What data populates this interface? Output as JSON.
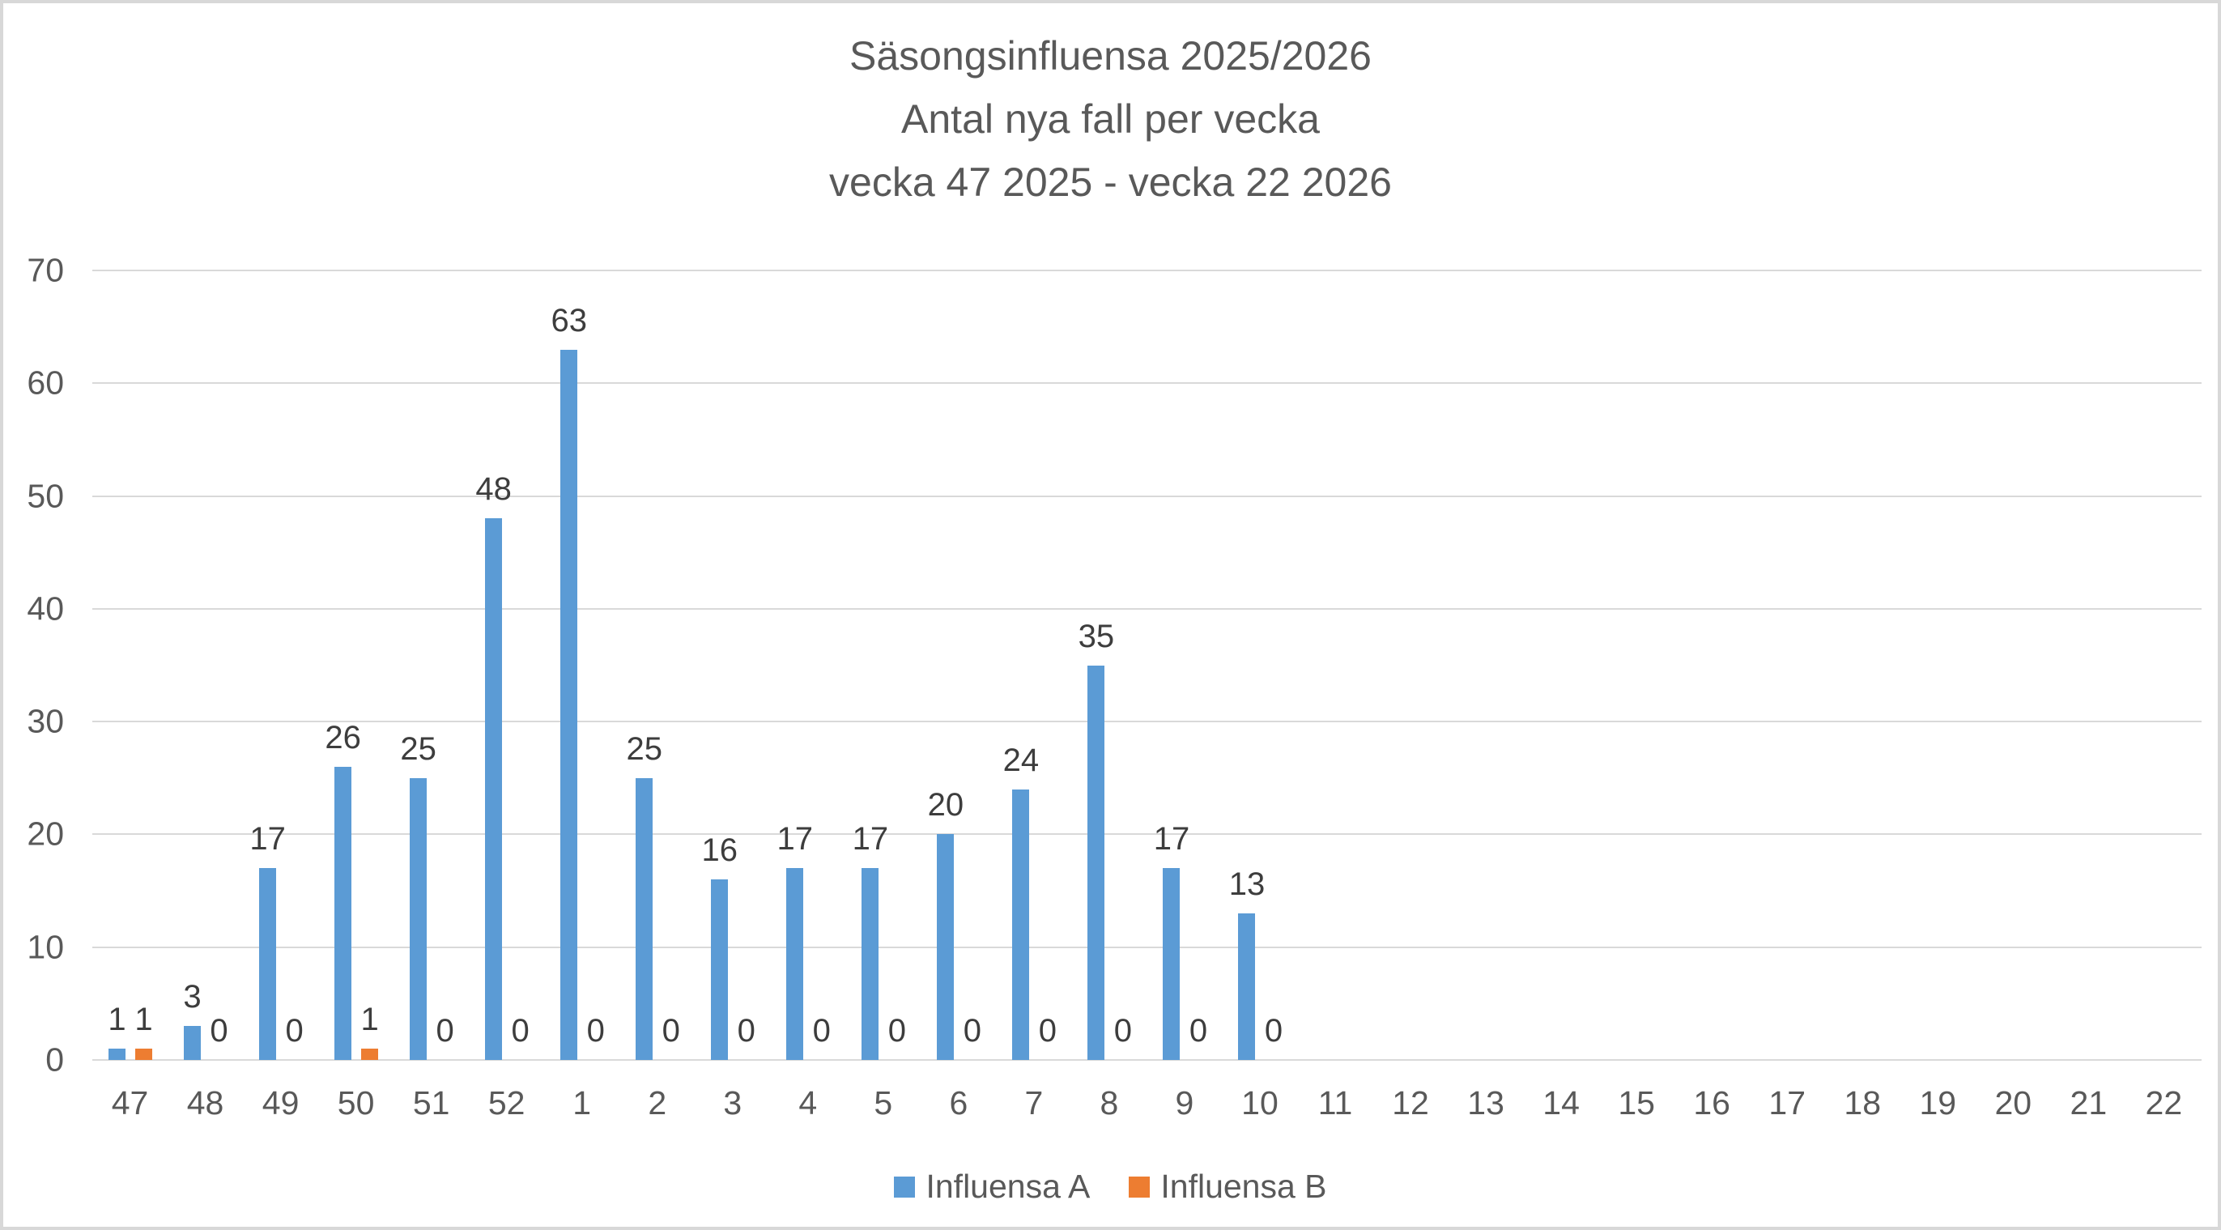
{
  "title": {
    "line1": "Säsongsinfluensa 2025/2026",
    "line2": "Antal nya fall per vecka",
    "line3": "vecka 47 2025 - vecka 22 2026"
  },
  "colors": {
    "influensa_a": "#5B9BD5",
    "influensa_b": "#ED7D31",
    "gridline": "#D9D9D9",
    "axis_text": "#595959",
    "data_label_text": "#3D3D3D",
    "canvas_border": "#D8D8D8",
    "background": "#FFFFFF"
  },
  "chart_data": {
    "type": "bar",
    "title": "Säsongsinfluensa 2025/2026\nAntal nya fall per vecka\nvecka 47 2025 - vecka 22 2026",
    "xlabel": "",
    "ylabel": "",
    "categories": [
      "47",
      "48",
      "49",
      "50",
      "51",
      "52",
      "1",
      "2",
      "3",
      "4",
      "5",
      "6",
      "7",
      "8",
      "9",
      "10",
      "11",
      "12",
      "13",
      "14",
      "15",
      "16",
      "17",
      "18",
      "19",
      "20",
      "21",
      "22"
    ],
    "series": [
      {
        "name": "Influensa A",
        "color": "#5B9BD5",
        "values": [
          1,
          3,
          17,
          26,
          25,
          48,
          63,
          25,
          16,
          17,
          17,
          20,
          24,
          35,
          17,
          13,
          null,
          null,
          null,
          null,
          null,
          null,
          null,
          null,
          null,
          null,
          null,
          null
        ]
      },
      {
        "name": "Influensa B",
        "color": "#ED7D31",
        "values": [
          1,
          0,
          0,
          1,
          0,
          0,
          0,
          0,
          0,
          0,
          0,
          0,
          0,
          0,
          0,
          0,
          null,
          null,
          null,
          null,
          null,
          null,
          null,
          null,
          null,
          null,
          null,
          null
        ]
      }
    ],
    "ylim": [
      0,
      70
    ],
    "yticks": [
      0,
      10,
      20,
      30,
      40,
      50,
      60,
      70
    ],
    "grid": true,
    "data_labels": true,
    "legend_position": "bottom"
  }
}
